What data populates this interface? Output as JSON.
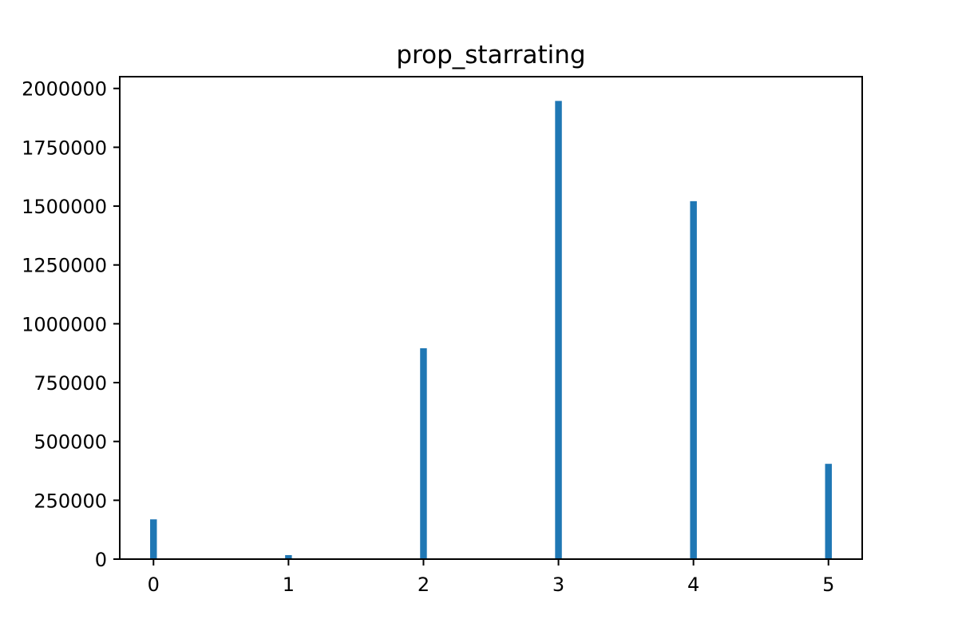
{
  "chart_data": {
    "type": "bar",
    "title": "prop_starrating",
    "xlabel": "",
    "ylabel": "",
    "x": [
      0,
      1,
      2,
      3,
      4,
      5
    ],
    "values": [
      169000,
      17000,
      896000,
      1947000,
      1521000,
      405000
    ],
    "xlim": [
      -0.25,
      5.25
    ],
    "ylim": [
      0,
      2050000
    ],
    "xticks": [
      0,
      1,
      2,
      3,
      4,
      5
    ],
    "xtick_labels": [
      "0",
      "1",
      "2",
      "3",
      "4",
      "5"
    ],
    "yticks": [
      0,
      250000,
      500000,
      750000,
      1000000,
      1250000,
      1500000,
      1750000,
      2000000
    ],
    "ytick_labels": [
      "0",
      "250000",
      "500000",
      "750000",
      "1000000",
      "1250000",
      "1500000",
      "1750000",
      "2000000"
    ],
    "bar_width": 0.05,
    "grid": false,
    "legend": "none",
    "colors": {
      "bar": "#1f77b4"
    }
  }
}
